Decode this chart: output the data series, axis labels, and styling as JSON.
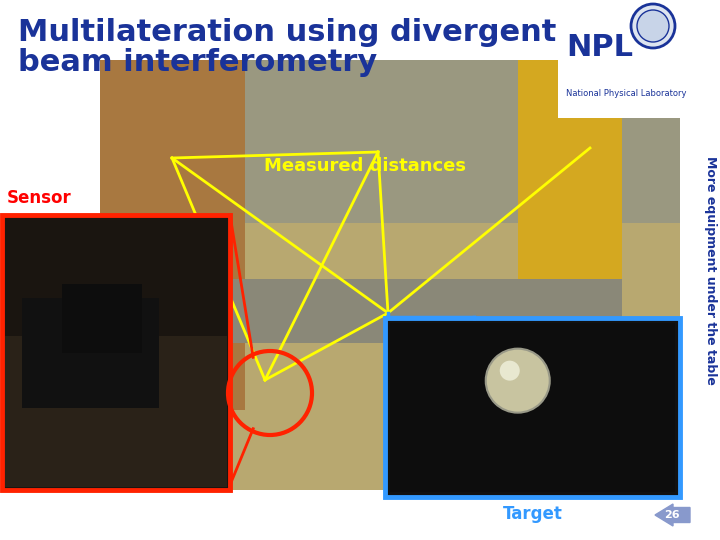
{
  "title_line1": "Multilateration using divergent",
  "title_line2": "beam interferometry",
  "title_color": "#1a3399",
  "title_fontsize": 22,
  "bg_color": "#ffffff",
  "label_measured": "Measured distances",
  "label_measured_color": "#ffff00",
  "label_measured_fontsize": 13,
  "label_sensor": "Sensor",
  "label_sensor_color": "#ff0000",
  "label_sensor_fontsize": 12,
  "label_target": "Target",
  "label_target_color": "#3399ff",
  "label_target_fontsize": 12,
  "npl_color": "#1a3399",
  "npl_fontsize": 22,
  "npl_sub": "National Physical Laboratory",
  "npl_sub_fontsize": 6,
  "side_text": "More equipment under the table",
  "side_text_color": "#1a3399",
  "side_text_fontsize": 9,
  "page_num": "26"
}
